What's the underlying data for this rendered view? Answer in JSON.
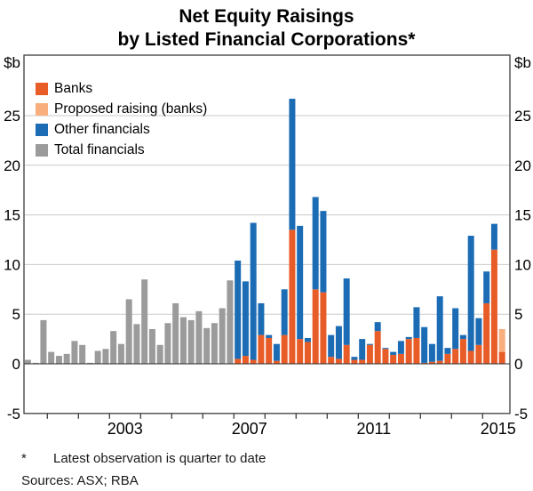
{
  "title": {
    "line1": "Net Equity Raisings",
    "line2": "by Listed Financial Corporations*"
  },
  "axis": {
    "unit_label_left": "$b",
    "unit_label_right": "$b"
  },
  "legend": {
    "items": [
      {
        "label": "Banks",
        "color": "banks"
      },
      {
        "label": "Proposed raising (banks)",
        "color": "proposed_banks"
      },
      {
        "label": "Other financials",
        "color": "other_financials"
      },
      {
        "label": "Total financials",
        "color": "total_financials"
      }
    ]
  },
  "colors": {
    "banks": "#E85C28",
    "proposed_banks": "#F8AE7D",
    "other_financials": "#1C6CB5",
    "total_financials": "#9B9B9B",
    "gridline": "#c9c9c9",
    "frame": "#3c3c3c",
    "zero_line": "#2a2a2a",
    "text": "#000000"
  },
  "footnotes": {
    "marker": "*",
    "note": "Latest observation is quarter to date",
    "sources": "Sources:  ASX; RBA"
  },
  "chart_data": {
    "type": "bar",
    "stacked": true,
    "title": "Net Equity Raisings by Listed Financial Corporations*",
    "ylabel": "$b",
    "ylim": [
      -5,
      31
    ],
    "grid": true,
    "legend_position": "top-left",
    "y_ticks": [
      -5,
      0,
      5,
      10,
      15,
      20,
      25
    ],
    "x_year_ticks": [
      2001,
      2002,
      2003,
      2004,
      2005,
      2006,
      2007,
      2008,
      2009,
      2010,
      2011,
      2012,
      2013,
      2014,
      2015
    ],
    "x_year_labels": [
      2003,
      2007,
      2011,
      2015
    ],
    "series_names": [
      "Banks",
      "Proposed raising (banks)",
      "Other financials",
      "Total financials"
    ],
    "bars": [
      {
        "period": "2000Q2",
        "total_financials": 0.4
      },
      {
        "period": "2000Q3",
        "total_financials": 0.1
      },
      {
        "period": "2000Q4",
        "total_financials": 4.4
      },
      {
        "period": "2001Q1",
        "total_financials": 1.2
      },
      {
        "period": "2001Q2",
        "total_financials": 0.8
      },
      {
        "period": "2001Q3",
        "total_financials": 1.0
      },
      {
        "period": "2001Q4",
        "total_financials": 2.3
      },
      {
        "period": "2002Q1",
        "total_financials": 1.9
      },
      {
        "period": "2002Q2",
        "total_financials": 0.1
      },
      {
        "period": "2002Q3",
        "total_financials": 1.3
      },
      {
        "period": "2002Q4",
        "total_financials": 1.5
      },
      {
        "period": "2003Q1",
        "total_financials": 3.3
      },
      {
        "period": "2003Q2",
        "total_financials": 2.0
      },
      {
        "period": "2003Q3",
        "total_financials": 6.5
      },
      {
        "period": "2003Q4",
        "total_financials": 4.0
      },
      {
        "period": "2004Q1",
        "total_financials": 8.5
      },
      {
        "period": "2004Q2",
        "total_financials": 3.5
      },
      {
        "period": "2004Q3",
        "total_financials": 1.9
      },
      {
        "period": "2004Q4",
        "total_financials": 4.1
      },
      {
        "period": "2005Q1",
        "total_financials": 6.1
      },
      {
        "period": "2005Q2",
        "total_financials": 4.7
      },
      {
        "period": "2005Q3",
        "total_financials": 4.4
      },
      {
        "period": "2005Q4",
        "total_financials": 5.3
      },
      {
        "period": "2006Q1",
        "total_financials": 3.6
      },
      {
        "period": "2006Q2",
        "total_financials": 4.1
      },
      {
        "period": "2006Q3",
        "total_financials": 5.6
      },
      {
        "period": "2006Q4",
        "total_financials": 8.4
      },
      {
        "period": "2007Q1",
        "banks": 0.5,
        "other_financials": 9.9
      },
      {
        "period": "2007Q2",
        "banks": 0.8,
        "other_financials": 7.5
      },
      {
        "period": "2007Q3",
        "banks": 0.4,
        "other_financials": 13.8
      },
      {
        "period": "2007Q4",
        "banks": 2.9,
        "other_financials": 3.2
      },
      {
        "period": "2008Q1",
        "banks": 2.6,
        "other_financials": 0.3
      },
      {
        "period": "2008Q2",
        "banks": 0.3,
        "other_financials": 1.7
      },
      {
        "period": "2008Q3",
        "banks": 2.9,
        "other_financials": 4.6
      },
      {
        "period": "2008Q4",
        "banks": 13.5,
        "other_financials": 13.2
      },
      {
        "period": "2009Q1",
        "banks": 2.5,
        "other_financials": 11.4
      },
      {
        "period": "2009Q2",
        "banks": 2.2,
        "other_financials": 0.4
      },
      {
        "period": "2009Q3",
        "banks": 7.5,
        "other_financials": 9.3
      },
      {
        "period": "2009Q4",
        "banks": 7.2,
        "other_financials": 8.2
      },
      {
        "period": "2010Q1",
        "banks": 0.7,
        "other_financials": 2.2
      },
      {
        "period": "2010Q2",
        "banks": 0.5,
        "other_financials": 3.3
      },
      {
        "period": "2010Q3",
        "banks": 1.9,
        "other_financials": 6.7
      },
      {
        "period": "2010Q4",
        "banks": 0.4,
        "other_financials": 0.3
      },
      {
        "period": "2011Q1",
        "banks": 0.4,
        "other_financials": 2.1
      },
      {
        "period": "2011Q2",
        "banks": 1.9,
        "other_financials": 0.1
      },
      {
        "period": "2011Q3",
        "banks": 3.3,
        "other_financials": 0.9
      },
      {
        "period": "2011Q4",
        "banks": 1.5,
        "other_financials": 0.1
      },
      {
        "period": "2012Q1",
        "banks": 0.9,
        "other_financials": 0.3
      },
      {
        "period": "2012Q2",
        "banks": 1.0,
        "other_financials": 1.3
      },
      {
        "period": "2012Q3",
        "banks": 2.5,
        "other_financials": 0.2
      },
      {
        "period": "2012Q4",
        "banks": 2.6,
        "other_financials": 3.1
      },
      {
        "period": "2013Q1",
        "banks": 0.1,
        "other_financials": 3.6
      },
      {
        "period": "2013Q2",
        "banks": 0.2,
        "other_financials": 1.8
      },
      {
        "period": "2013Q3",
        "banks": 0.3,
        "other_financials": 6.5
      },
      {
        "period": "2013Q4",
        "banks": 1.0,
        "other_financials": 0.6
      },
      {
        "period": "2014Q1",
        "banks": 1.5,
        "other_financials": 4.1
      },
      {
        "period": "2014Q2",
        "banks": 2.5,
        "other_financials": 0.4
      },
      {
        "period": "2014Q3",
        "banks": 1.3,
        "other_financials": 11.6
      },
      {
        "period": "2014Q4",
        "banks": 1.9,
        "other_financials": 2.7
      },
      {
        "period": "2015Q1",
        "banks": 6.1,
        "other_financials": 3.2
      },
      {
        "period": "2015Q2",
        "banks": 11.5,
        "other_financials": 2.6
      },
      {
        "period": "2015Q3",
        "banks": 1.2,
        "proposed_banks": 2.3
      }
    ]
  }
}
